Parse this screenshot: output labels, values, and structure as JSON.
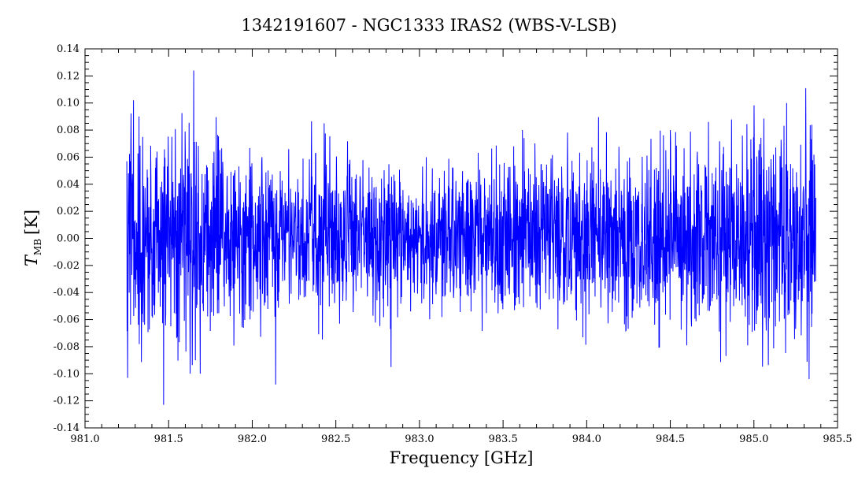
{
  "chart_data": {
    "type": "line",
    "title": "1342191607 - NGC1333 IRAS2 (WBS-V-LSB)",
    "xlabel": "Frequency [GHz]",
    "ylabel_main": "T",
    "ylabel_sub": "MB",
    "ylabel_unit": "[K]",
    "xlim": [
      981.0,
      985.5
    ],
    "ylim": [
      -0.14,
      0.14
    ],
    "xticks": [
      "981.0",
      "981.5",
      "982.0",
      "982.5",
      "983.0",
      "983.5",
      "984.0",
      "984.5",
      "985.0",
      "985.5"
    ],
    "yticks": [
      "0.14",
      "0.12",
      "0.10",
      "0.08",
      "0.06",
      "0.04",
      "0.02",
      "0.00",
      "-0.02",
      "-0.04",
      "-0.06",
      "-0.08",
      "-0.10",
      "-0.12",
      "-0.14"
    ],
    "grid": false,
    "series": [
      {
        "color": "#0000ff",
        "x_range": [
          981.25,
          985.37
        ],
        "note_points": [
          [
            981.25,
            0.057
          ],
          [
            981.255,
            -0.103
          ],
          [
            981.29,
            0.102
          ],
          [
            981.47,
            -0.123
          ],
          [
            981.65,
            0.124
          ],
          [
            981.66,
            -0.09
          ],
          [
            982.14,
            -0.108
          ],
          [
            982.43,
            0.085
          ],
          [
            982.83,
            -0.095
          ],
          [
            983.0,
            0.0
          ],
          [
            984.5,
            0.08
          ],
          [
            985.31,
            0.111
          ],
          [
            985.33,
            -0.104
          ],
          [
            985.37,
            0.03
          ]
        ]
      }
    ]
  }
}
